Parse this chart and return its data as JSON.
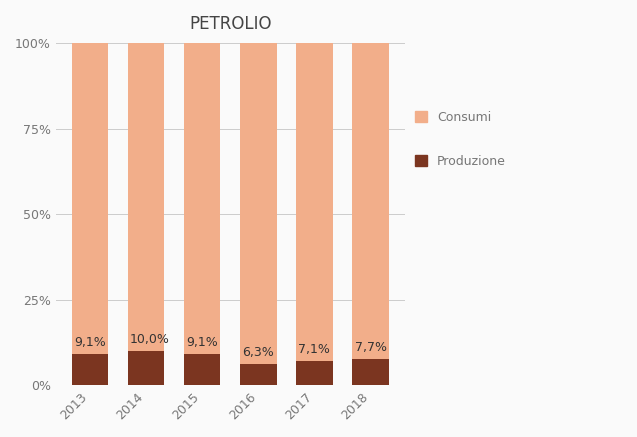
{
  "title": "PETROLIO",
  "categories": [
    "2013",
    "2014",
    "2015",
    "2016",
    "2017",
    "2018"
  ],
  "produzione_values": [
    9.1,
    10.0,
    9.1,
    6.3,
    7.1,
    7.7
  ],
  "consumi_values": [
    90.9,
    90.0,
    90.9,
    93.7,
    92.9,
    92.3
  ],
  "produzione_color": "#7B3520",
  "consumi_color": "#F2AE8A",
  "bar_width": 0.65,
  "ylim": [
    0,
    100
  ],
  "yticks": [
    0,
    25,
    50,
    75,
    100
  ],
  "ytick_labels": [
    "0%",
    "25%",
    "50%",
    "75%",
    "100%"
  ],
  "legend_consumi": "Consumi",
  "legend_produzione": "Produzione",
  "title_fontsize": 12,
  "tick_fontsize": 9,
  "label_fontsize": 9,
  "background_color": "#FAFAFA",
  "grid_color": "#CCCCCC",
  "text_color": "#777777",
  "label_color": "#333333"
}
